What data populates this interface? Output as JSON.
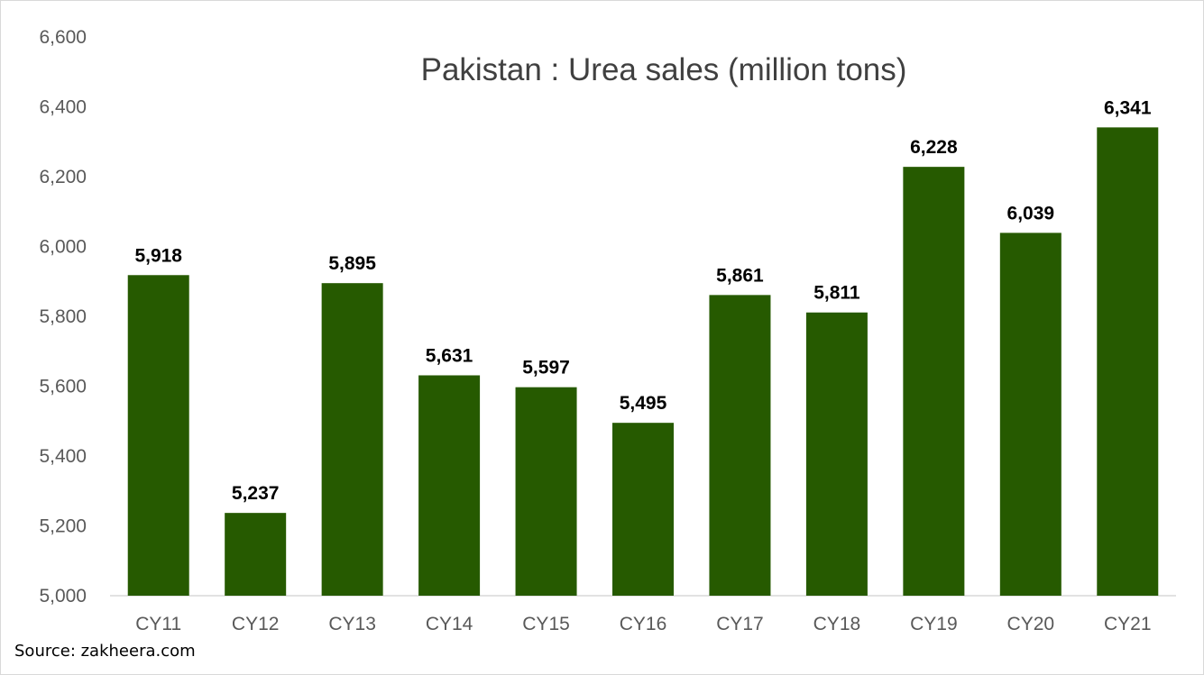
{
  "chart_data": {
    "type": "bar",
    "title": "Pakistan : Urea sales (million tons)",
    "categories": [
      "CY11",
      "CY12",
      "CY13",
      "CY14",
      "CY15",
      "CY16",
      "CY17",
      "CY18",
      "CY19",
      "CY20",
      "CY21"
    ],
    "values": [
      5918,
      5237,
      5895,
      5631,
      5597,
      5495,
      5861,
      5811,
      6228,
      6039,
      6341
    ],
    "value_labels": [
      "5,918",
      "5,237",
      "5,895",
      "5,631",
      "5,597",
      "5,495",
      "5,861",
      "5,811",
      "6,228",
      "6,039",
      "6,341"
    ],
    "yticks": [
      "5,000",
      "5,200",
      "5,400",
      "5,600",
      "5,800",
      "6,000",
      "6,200",
      "6,400",
      "6,600"
    ],
    "ylim": [
      5000,
      6600
    ],
    "xlabel": "",
    "ylabel": "",
    "grid": false,
    "bar_color": "#265a00"
  },
  "source": "Source: zakheera.com"
}
